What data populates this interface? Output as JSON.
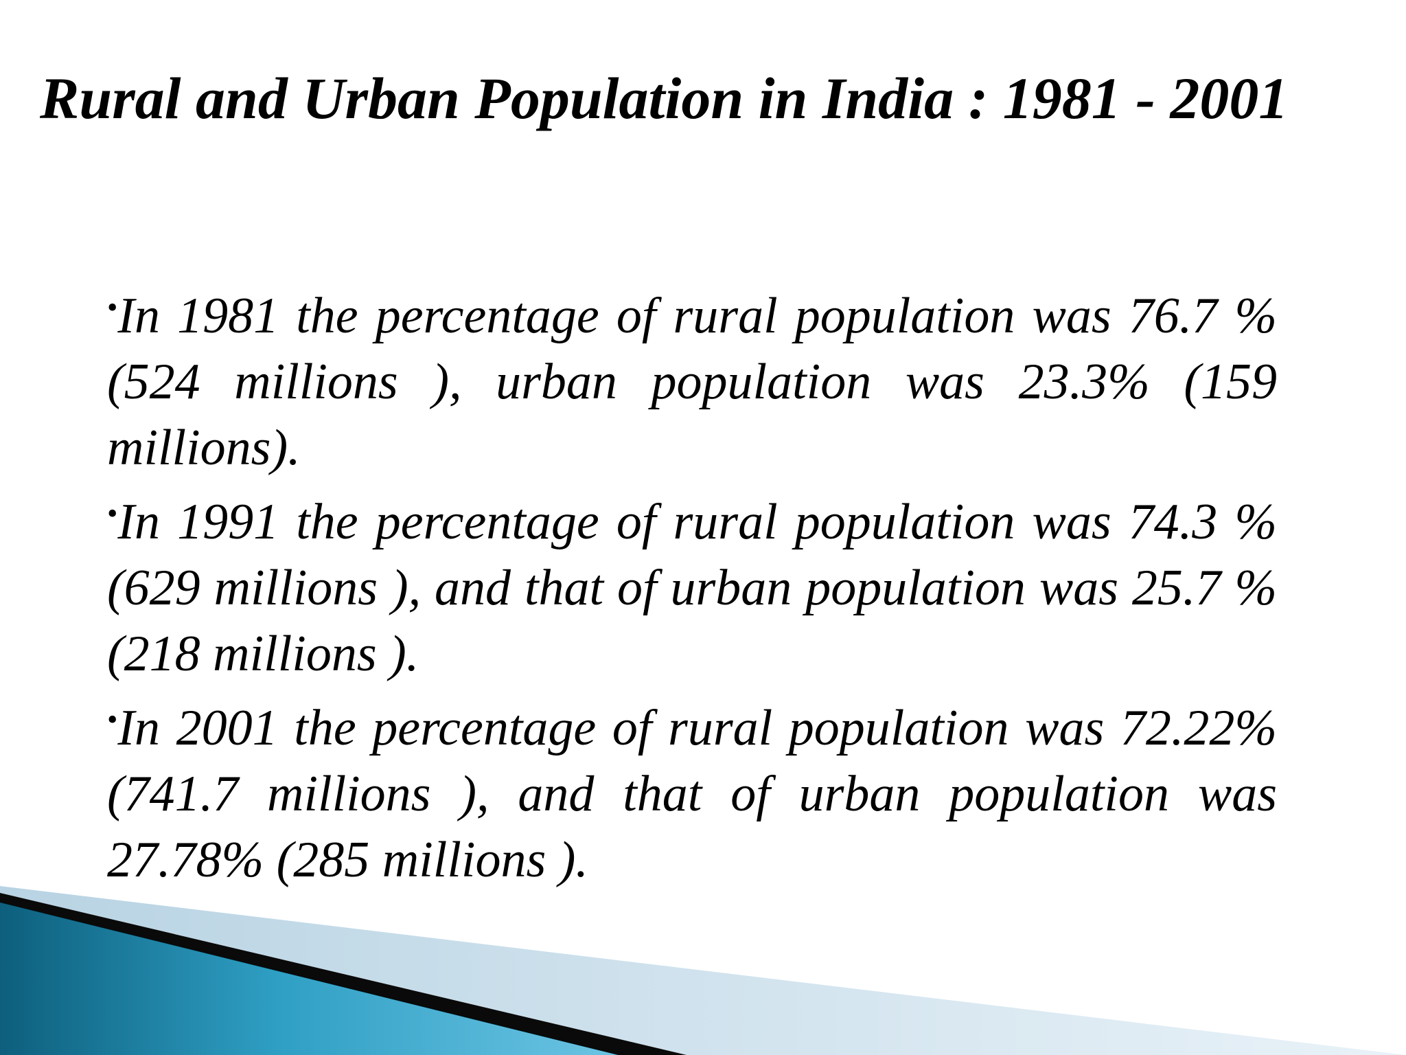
{
  "slide": {
    "title": "Rural and Urban Population in India : 1981 - 2001",
    "bullet_marker": "•",
    "bullets": [
      {
        "text": "In 1981 the percentage of rural population was 76.7 % (524 millions ), urban population was 23.3% (159 millions)."
      },
      {
        "text": "In 1991 the percentage of rural population was 74.3 % (629 millions ), and that of urban population was 25.7 % (218 millions )."
      },
      {
        "text": "In 2001 the percentage of rural population was 72.22% (741.7 millions ), and that of urban population was 27.78% (285 millions )."
      }
    ],
    "colors": {
      "background": "#ffffff",
      "text": "#000000",
      "accent_blue": "#2f9fc4",
      "accent_dark": "#0d5f7d",
      "accent_light": "#dbe9f2"
    }
  }
}
